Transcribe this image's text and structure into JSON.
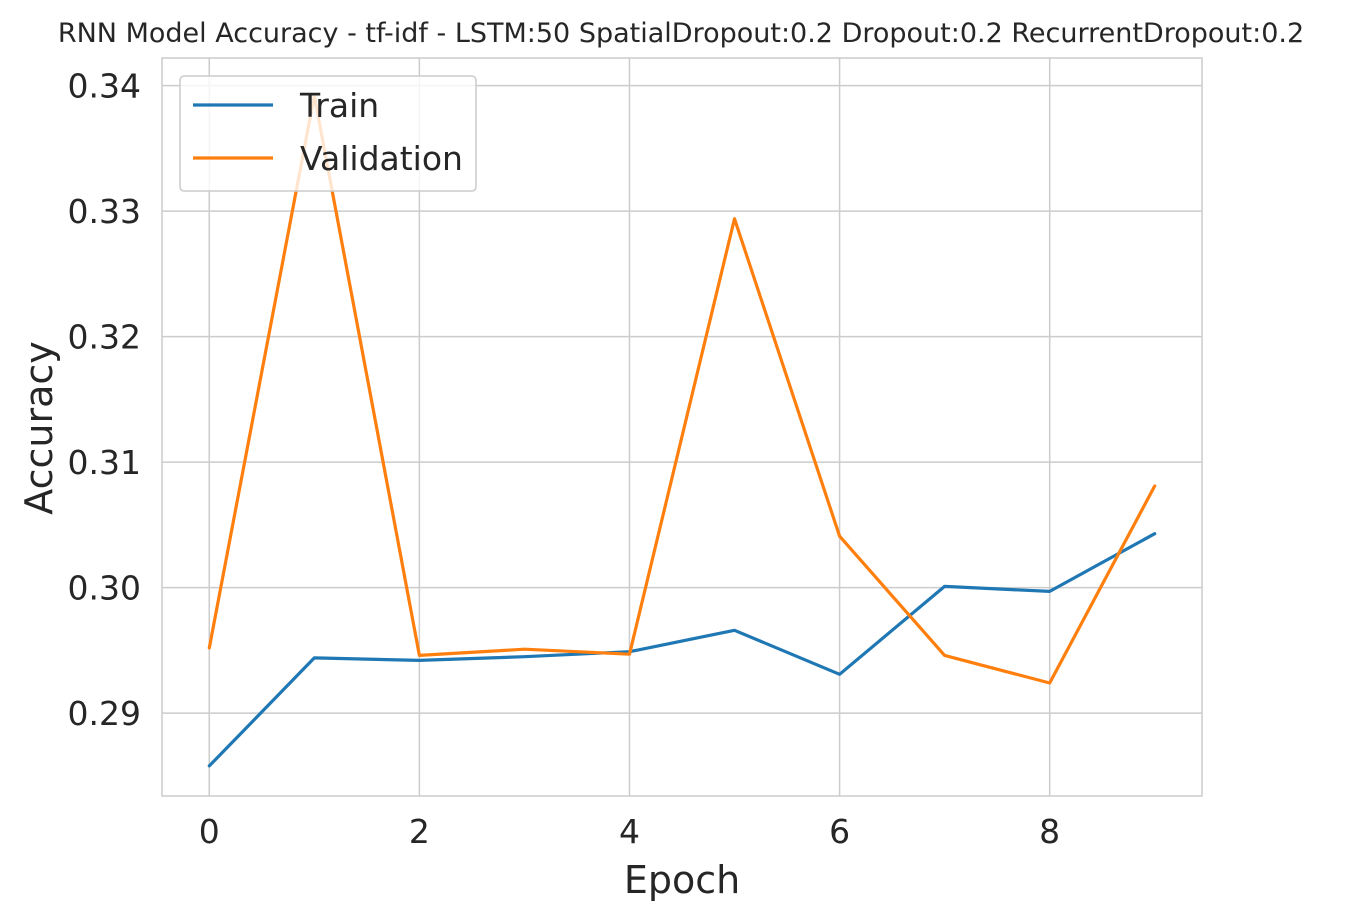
{
  "chart_data": {
    "type": "line",
    "title": "RNN Model Accuracy - tf-idf - LSTM:50 SpatialDropout:0.2 Dropout:0.2 RecurrentDropout:0.2",
    "xlabel": "Epoch",
    "ylabel": "Accuracy",
    "x": [
      0,
      1,
      2,
      3,
      4,
      5,
      6,
      7,
      8,
      9
    ],
    "xlim": [
      -0.45,
      9.45
    ],
    "ylim": [
      0.2834,
      0.3422
    ],
    "xticks": [
      0,
      2,
      4,
      6,
      8
    ],
    "xtick_labels": [
      "0",
      "2",
      "4",
      "6",
      "8"
    ],
    "yticks": [
      0.29,
      0.3,
      0.31,
      0.32,
      0.33,
      0.34
    ],
    "ytick_labels": [
      "0.29",
      "0.30",
      "0.31",
      "0.32",
      "0.33",
      "0.34"
    ],
    "grid": true,
    "legend_position": "upper left",
    "series": [
      {
        "name": "Train",
        "color": "#1f77b4",
        "values": [
          0.2858,
          0.2944,
          0.2942,
          0.2945,
          0.2949,
          0.2966,
          0.2931,
          0.3001,
          0.2997,
          0.3043
        ]
      },
      {
        "name": "Validation",
        "color": "#ff7f0e",
        "values": [
          0.2952,
          0.3392,
          0.2946,
          0.2951,
          0.2947,
          0.3294,
          0.3041,
          0.2946,
          0.2924,
          0.3081
        ]
      }
    ]
  }
}
